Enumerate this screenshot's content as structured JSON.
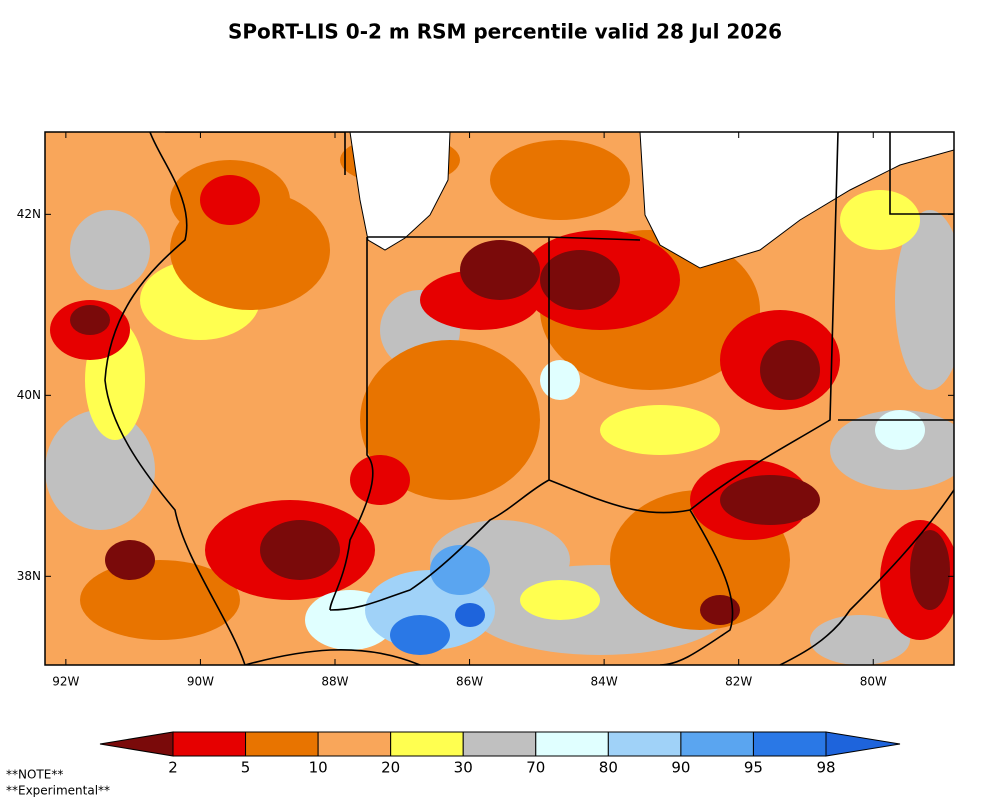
{
  "map": {
    "title": "SPoRT-LIS 0-2 m RSM percentile valid 28 Jul 2026",
    "lon_range": [
      -92.31,
      -78.8
    ],
    "lat_range": [
      37.02,
      42.91
    ],
    "lon_ticks": [
      {
        "value": -92,
        "label": "92W"
      },
      {
        "value": -90,
        "label": "90W"
      },
      {
        "value": -88,
        "label": "88W"
      },
      {
        "value": -86,
        "label": "86W"
      },
      {
        "value": -84,
        "label": "84W"
      },
      {
        "value": -82,
        "label": "82W"
      },
      {
        "value": -80,
        "label": "80W"
      }
    ],
    "lat_ticks": [
      {
        "value": 42,
        "label": "42N"
      },
      {
        "value": 40,
        "label": "40N"
      },
      {
        "value": 38,
        "label": "38N"
      }
    ]
  },
  "colorbar": {
    "colors": [
      "#7a0a0a",
      "#e60000",
      "#e87400",
      "#f9a65a",
      "#ffff50",
      "#c0c0c0",
      "#e0ffff",
      "#a0d2f8",
      "#5aa5f0",
      "#2a78e6",
      "#1e64dc"
    ],
    "ticks": [
      2,
      5,
      10,
      20,
      30,
      70,
      80,
      90,
      95,
      98
    ]
  },
  "notes": [
    "**NOTE**",
    "**Experimental**"
  ]
}
